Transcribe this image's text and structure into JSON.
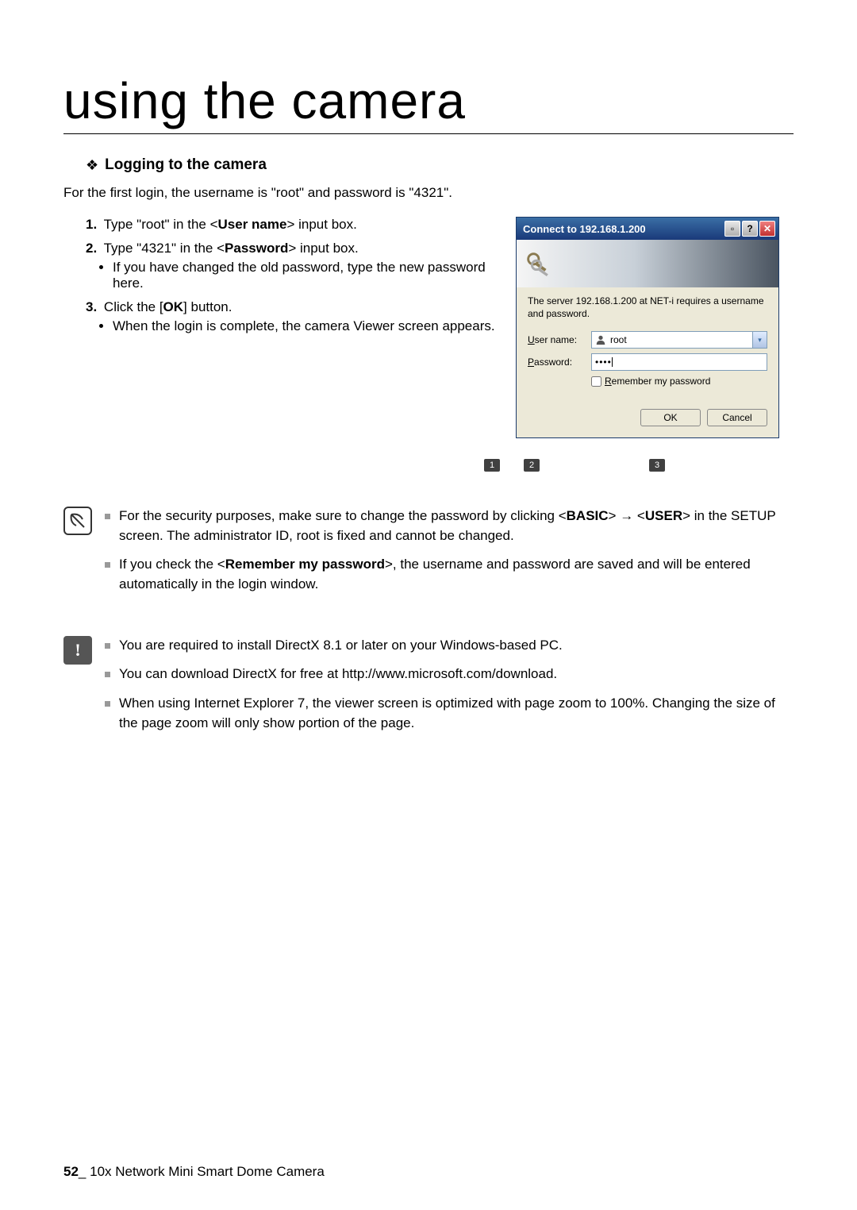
{
  "title": "using the camera",
  "section": {
    "label": "Logging to the camera"
  },
  "intro": "For the first login, the username is \"root\" and password is \"4321\".",
  "steps": [
    {
      "num": "1.",
      "text_before": "Type \"root\" in the <",
      "bold": "User name",
      "text_after": "> input box."
    },
    {
      "num": "2.",
      "text_before": "Type \"4321\" in the <",
      "bold": "Password",
      "text_after": "> input box.",
      "sub": [
        "If you have changed the old password, type the new password here."
      ]
    },
    {
      "num": "3.",
      "text_before": "Click the [",
      "bold": "OK",
      "text_after": "] button.",
      "sub": [
        "When the login is complete, the camera Viewer screen appears."
      ]
    }
  ],
  "dialog": {
    "title": "Connect to 192.168.1.200",
    "msg": "The server 192.168.1.200 at NET-i requires a username and password.",
    "user_label_u": "U",
    "user_label_rest": "ser name:",
    "pwd_label_u": "P",
    "pwd_label_rest": "assword:",
    "user_value": "root",
    "pwd_dots": "••••",
    "remember_u": "R",
    "remember_rest": "emember my password",
    "ok": "OK",
    "cancel": "Cancel",
    "callouts": [
      "1",
      "2",
      "3"
    ]
  },
  "notes1": [
    {
      "pre": "For the security purposes, make sure to change the password by clicking <",
      "b1": "BASIC",
      "mid": ">  →  <",
      "b2": "USER",
      "post": "> in the SETUP screen. The administrator ID, root is fixed and cannot be changed."
    },
    {
      "pre": "If you check the <",
      "b1": "Remember my password",
      "post": ">, the username and password are saved and will be entered automatically in the login window."
    }
  ],
  "notes2": [
    "You are required to install DirectX 8.1 or later on your Windows-based PC.",
    "You can download DirectX for free at http://www.microsoft.com/download.",
    "When using Internet Explorer 7, the viewer screen is optimized with page zoom to 100%. Changing the size of the page zoom will only show portion of the page."
  ],
  "footer": {
    "page": "52",
    "sep": "_ ",
    "product": "10x Network Mini Smart Dome Camera"
  }
}
